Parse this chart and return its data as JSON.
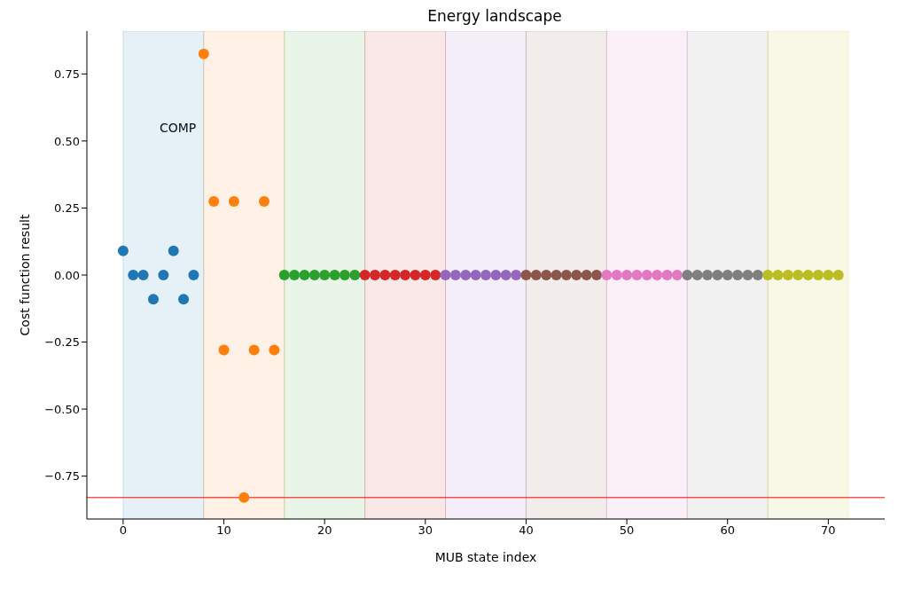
{
  "chart_data": {
    "type": "scatter",
    "title": "Energy landscape",
    "xlabel": "MUB state index",
    "ylabel": "Cost function result",
    "xlim": [
      -3.6,
      75.6
    ],
    "xticks": [
      0,
      10,
      20,
      30,
      40,
      50,
      60,
      70
    ],
    "ylim": [
      -0.91,
      0.91
    ],
    "yticks": [
      {
        "value": -0.75,
        "label": "−0.75"
      },
      {
        "value": -0.5,
        "label": "−0.50"
      },
      {
        "value": -0.25,
        "label": "−0.25"
      },
      {
        "value": 0,
        "label": "0.00"
      },
      {
        "value": 0.25,
        "label": "0.25"
      },
      {
        "value": 0.5,
        "label": "0.50"
      },
      {
        "value": 0.75,
        "label": "0.75"
      }
    ],
    "grid": false,
    "legend": false,
    "marker": "circle",
    "series": [
      {
        "color": "#1f77b4",
        "x": [
          0,
          1,
          2,
          3,
          4,
          5,
          6,
          7
        ],
        "values": [
          0.09,
          0,
          0,
          -0.09,
          0,
          0.09,
          -0.09,
          0
        ]
      },
      {
        "color": "#ff7f0e",
        "x": [
          8,
          9,
          10,
          11,
          12,
          13,
          14,
          15
        ],
        "values": [
          0.825,
          0.275,
          -0.28,
          0.275,
          -0.83,
          -0.28,
          0.275,
          -0.28
        ]
      },
      {
        "color": "#2ca02c",
        "x": [
          16,
          17,
          18,
          19,
          20,
          21,
          22,
          23
        ],
        "values": [
          0,
          0,
          0,
          0,
          0,
          0,
          0,
          0
        ]
      },
      {
        "color": "#d62728",
        "x": [
          24,
          25,
          26,
          27,
          28,
          29,
          30,
          31
        ],
        "values": [
          0,
          0,
          0,
          0,
          0,
          0,
          0,
          0
        ]
      },
      {
        "color": "#9467bd",
        "x": [
          32,
          33,
          34,
          35,
          36,
          37,
          38,
          39
        ],
        "values": [
          0,
          0,
          0,
          0,
          0,
          0,
          0,
          0
        ]
      },
      {
        "color": "#8c564b",
        "x": [
          40,
          41,
          42,
          43,
          44,
          45,
          46,
          47
        ],
        "values": [
          0,
          0,
          0,
          0,
          0,
          0,
          0,
          0
        ]
      },
      {
        "color": "#e377c2",
        "x": [
          48,
          49,
          50,
          51,
          52,
          53,
          54,
          55
        ],
        "values": [
          0,
          0,
          0,
          0,
          0,
          0,
          0,
          0
        ]
      },
      {
        "color": "#7f7f7f",
        "x": [
          56,
          57,
          58,
          59,
          60,
          61,
          62,
          63
        ],
        "values": [
          0,
          0,
          0,
          0,
          0,
          0,
          0,
          0
        ]
      },
      {
        "color": "#bcbd22",
        "x": [
          64,
          65,
          66,
          67,
          68,
          69,
          70,
          71
        ],
        "values": [
          0,
          0,
          0,
          0,
          0,
          0,
          0,
          0
        ]
      }
    ],
    "bands": [
      {
        "axis": "x",
        "from": 0,
        "to": 8,
        "color": "#1f77b4"
      },
      {
        "axis": "x",
        "from": 8,
        "to": 16,
        "color": "#ff7f0e"
      },
      {
        "axis": "x",
        "from": 16,
        "to": 24,
        "color": "#2ca02c"
      },
      {
        "axis": "x",
        "from": 24,
        "to": 32,
        "color": "#d62728"
      },
      {
        "axis": "x",
        "from": 32,
        "to": 40,
        "color": "#9467bd"
      },
      {
        "axis": "x",
        "from": 40,
        "to": 48,
        "color": "#8c564b"
      },
      {
        "axis": "x",
        "from": 48,
        "to": 56,
        "color": "#e377c2"
      },
      {
        "axis": "x",
        "from": 56,
        "to": 64,
        "color": "#7f7f7f"
      },
      {
        "axis": "x",
        "from": 64,
        "to": 72,
        "color": "#bcbd22"
      }
    ],
    "ref_lines": [
      {
        "axis": "y",
        "value": -0.83,
        "color": "#ff0000",
        "line_style": "solid"
      }
    ],
    "annotations": [
      "COMP"
    ]
  }
}
